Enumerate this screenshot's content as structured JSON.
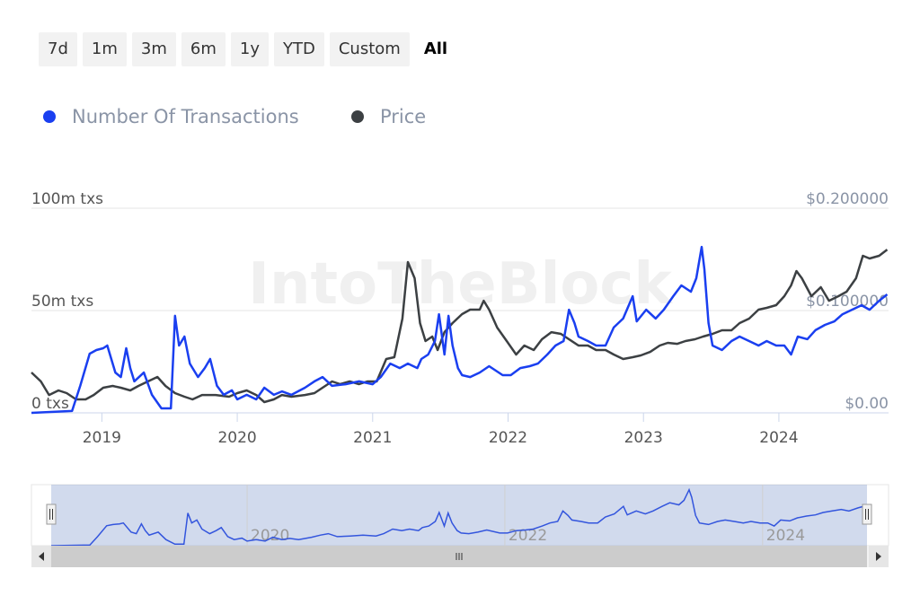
{
  "range_buttons": [
    "7d",
    "1m",
    "3m",
    "6m",
    "1y",
    "YTD",
    "Custom",
    "All"
  ],
  "watermark": "IntoTheBlock",
  "chart_data": {
    "type": "line",
    "xlim": [
      2018.48,
      2024.81
    ],
    "xticks": [
      2019,
      2020,
      2021,
      2022,
      2023,
      2024
    ],
    "ylim": [
      0,
      100
    ],
    "yticks": [
      {
        "value": 0,
        "label": "0 txs"
      },
      {
        "value": 50,
        "label": "50m txs"
      },
      {
        "value": 100,
        "label": "100m txs"
      }
    ],
    "y2lim": [
      0,
      0.2
    ],
    "y2ticks": [
      {
        "value": 0,
        "label": "$0.00"
      },
      {
        "value": 0.1,
        "label": "$0.100000"
      },
      {
        "value": 0.2,
        "label": "$0.200000"
      }
    ],
    "grid": true,
    "legend": "top-left",
    "navigator": {
      "xticks": [
        2020,
        2022,
        2024
      ]
    },
    "series": [
      {
        "name": "Number Of Transactions",
        "color": "#1a3ff0",
        "x": [
          2018.48,
          2018.78,
          2018.84,
          2018.91,
          2018.96,
          2019.01,
          2019.04,
          2019.1,
          2019.14,
          2019.18,
          2019.21,
          2019.24,
          2019.31,
          2019.37,
          2019.44,
          2019.51,
          2019.54,
          2019.57,
          2019.61,
          2019.65,
          2019.71,
          2019.76,
          2019.8,
          2019.85,
          2019.9,
          2019.96,
          2020.0,
          2020.07,
          2020.14,
          2020.2,
          2020.27,
          2020.33,
          2020.4,
          2020.5,
          2020.57,
          2020.63,
          2020.7,
          2020.8,
          2020.9,
          2021.0,
          2021.06,
          2021.13,
          2021.2,
          2021.26,
          2021.33,
          2021.36,
          2021.41,
          2021.46,
          2021.49,
          2021.53,
          2021.56,
          2021.59,
          2021.63,
          2021.66,
          2021.72,
          2021.79,
          2021.86,
          2021.96,
          2022.02,
          2022.09,
          2022.16,
          2022.22,
          2022.29,
          2022.35,
          2022.41,
          2022.45,
          2022.49,
          2022.52,
          2022.59,
          2022.65,
          2022.72,
          2022.78,
          2022.85,
          2022.92,
          2022.95,
          2023.02,
          2023.09,
          2023.15,
          2023.22,
          2023.28,
          2023.35,
          2023.39,
          2023.43,
          2023.45,
          2023.48,
          2023.51,
          2023.58,
          2023.65,
          2023.71,
          2023.78,
          2023.85,
          2023.91,
          2023.98,
          2024.04,
          2024.09,
          2024.14,
          2024.21,
          2024.27,
          2024.34,
          2024.41,
          2024.47,
          2024.54,
          2024.61,
          2024.67,
          2024.74,
          2024.8
        ],
        "values": [
          0,
          0.9,
          13.2,
          28.9,
          30.7,
          31.6,
          32.9,
          19.7,
          17.5,
          31.6,
          21.9,
          15.4,
          19.7,
          8.8,
          2.2,
          2.2,
          47.4,
          32.9,
          37.3,
          24.1,
          17.5,
          21.9,
          26.3,
          13.2,
          8.8,
          11.0,
          6.6,
          8.8,
          6.6,
          12.3,
          8.8,
          10.5,
          8.8,
          12.3,
          15.4,
          17.5,
          13.2,
          14.0,
          15.4,
          14.0,
          17.5,
          24.1,
          21.9,
          24.1,
          21.9,
          26.3,
          28.5,
          35.1,
          48.2,
          28.5,
          47.4,
          32.9,
          21.9,
          18.4,
          17.5,
          19.7,
          22.8,
          18.4,
          18.4,
          21.9,
          22.8,
          24.1,
          28.5,
          32.9,
          35.1,
          50.4,
          43.9,
          37.3,
          35.1,
          32.9,
          32.9,
          41.7,
          46.1,
          57.0,
          44.7,
          50.4,
          46.1,
          50.4,
          57.0,
          62.3,
          59.2,
          65.8,
          81.1,
          70.2,
          43.9,
          32.9,
          30.7,
          35.1,
          37.3,
          35.1,
          32.9,
          35.1,
          32.9,
          32.9,
          28.5,
          37.3,
          36.0,
          40.4,
          43.0,
          44.7,
          48.2,
          50.4,
          52.6,
          50.4,
          54.8,
          57.9
        ]
      },
      {
        "name": "Price",
        "color": "#3c4043",
        "axis": "y2",
        "x": [
          2018.48,
          2018.55,
          2018.61,
          2018.68,
          2018.74,
          2018.81,
          2018.88,
          2018.94,
          2019.01,
          2019.08,
          2019.14,
          2019.21,
          2019.27,
          2019.34,
          2019.41,
          2019.47,
          2019.54,
          2019.61,
          2019.67,
          2019.74,
          2019.84,
          2019.94,
          2020.0,
          2020.07,
          2020.14,
          2020.2,
          2020.27,
          2020.33,
          2020.4,
          2020.5,
          2020.57,
          2020.63,
          2020.7,
          2020.76,
          2020.83,
          2020.9,
          2020.96,
          2021.03,
          2021.1,
          2021.16,
          2021.22,
          2021.26,
          2021.31,
          2021.35,
          2021.39,
          2021.44,
          2021.48,
          2021.53,
          2021.59,
          2021.66,
          2021.72,
          2021.79,
          2021.82,
          2021.86,
          2021.92,
          2021.99,
          2022.06,
          2022.12,
          2022.19,
          2022.25,
          2022.32,
          2022.39,
          2022.45,
          2022.52,
          2022.59,
          2022.65,
          2022.72,
          2022.78,
          2022.85,
          2022.92,
          2022.98,
          2023.05,
          2023.12,
          2023.18,
          2023.25,
          2023.31,
          2023.38,
          2023.44,
          2023.51,
          2023.58,
          2023.65,
          2023.71,
          2023.78,
          2023.85,
          2023.91,
          2023.98,
          2024.04,
          2024.09,
          2024.13,
          2024.17,
          2024.24,
          2024.31,
          2024.37,
          2024.44,
          2024.5,
          2024.57,
          2024.62,
          2024.67,
          2024.74,
          2024.8
        ],
        "values": [
          0.0395,
          0.0307,
          0.0175,
          0.0219,
          0.0193,
          0.0132,
          0.0132,
          0.0175,
          0.0246,
          0.0263,
          0.0246,
          0.0219,
          0.0263,
          0.0307,
          0.0351,
          0.0263,
          0.0193,
          0.0158,
          0.0132,
          0.0175,
          0.0175,
          0.0158,
          0.0193,
          0.0219,
          0.0175,
          0.0105,
          0.0132,
          0.0175,
          0.0158,
          0.0175,
          0.0193,
          0.0246,
          0.0307,
          0.0281,
          0.0307,
          0.0281,
          0.0307,
          0.0307,
          0.0526,
          0.0544,
          0.0921,
          0.1474,
          0.1316,
          0.0877,
          0.0702,
          0.0746,
          0.0614,
          0.0789,
          0.0877,
          0.0965,
          0.1009,
          0.1009,
          0.1096,
          0.1009,
          0.0833,
          0.0702,
          0.057,
          0.0658,
          0.0614,
          0.0719,
          0.0789,
          0.0772,
          0.0719,
          0.0658,
          0.0658,
          0.0614,
          0.0614,
          0.057,
          0.0526,
          0.0544,
          0.0561,
          0.0596,
          0.0658,
          0.0684,
          0.0675,
          0.0702,
          0.0719,
          0.0746,
          0.0772,
          0.0807,
          0.0807,
          0.0877,
          0.0921,
          0.1009,
          0.1026,
          0.1053,
          0.114,
          0.1246,
          0.1386,
          0.1316,
          0.114,
          0.1228,
          0.1096,
          0.114,
          0.1184,
          0.1316,
          0.1535,
          0.1509,
          0.1535,
          0.1596
        ]
      }
    ]
  }
}
